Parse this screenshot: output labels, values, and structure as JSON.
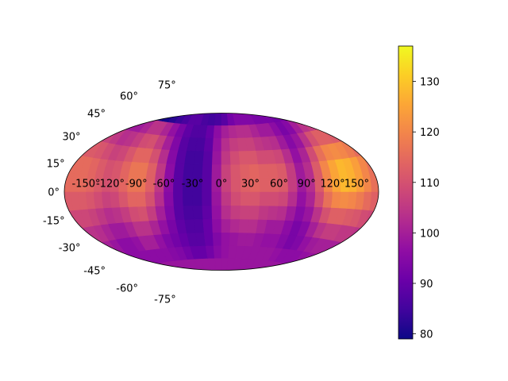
{
  "chart_data": {
    "type": "heatmap",
    "projection": "hammer",
    "grid": false,
    "lon_ticks": [
      {
        "value": -150,
        "label": "-150°"
      },
      {
        "value": -120,
        "label": "-120°"
      },
      {
        "value": -90,
        "label": "-90°"
      },
      {
        "value": -60,
        "label": "-60°"
      },
      {
        "value": -30,
        "label": "-30°"
      },
      {
        "value": 0,
        "label": "0°"
      },
      {
        "value": 30,
        "label": "30°"
      },
      {
        "value": 60,
        "label": "60°"
      },
      {
        "value": 90,
        "label": "90°"
      },
      {
        "value": 120,
        "label": "120°"
      },
      {
        "value": 150,
        "label": "150°"
      }
    ],
    "lat_ticks": [
      {
        "value": 75,
        "label": "75°"
      },
      {
        "value": 60,
        "label": "60°"
      },
      {
        "value": 45,
        "label": "45°"
      },
      {
        "value": 30,
        "label": "30°"
      },
      {
        "value": 15,
        "label": "15°"
      },
      {
        "value": 0,
        "label": "0°"
      },
      {
        "value": -15,
        "label": "-15°"
      },
      {
        "value": -30,
        "label": "-30°"
      },
      {
        "value": -45,
        "label": "-45°"
      },
      {
        "value": -60,
        "label": "-60°"
      },
      {
        "value": -75,
        "label": "-75°"
      }
    ],
    "lon_edges": [
      -180,
      -170,
      -160,
      -150,
      -140,
      -130,
      -120,
      -110,
      -100,
      -90,
      -80,
      -70,
      -60,
      -50,
      -40,
      -30,
      -20,
      -10,
      0,
      10,
      20,
      30,
      40,
      50,
      60,
      70,
      80,
      90,
      100,
      110,
      120,
      130,
      140,
      150,
      160,
      170,
      180
    ],
    "lat_edges": [
      -90,
      -80,
      -70,
      -60,
      -50,
      -40,
      -30,
      -20,
      -10,
      0,
      10,
      20,
      30,
      40,
      50,
      60,
      70,
      80,
      90
    ],
    "values_rows": [
      [
        100,
        100,
        100,
        100,
        100,
        100,
        100,
        100,
        100,
        100,
        100,
        100,
        100,
        100,
        100,
        100,
        100,
        100,
        100,
        100,
        100,
        100,
        100,
        100,
        100,
        100,
        100,
        100,
        100,
        100,
        100,
        100,
        100,
        100,
        100,
        100
      ],
      [
        101,
        101,
        101,
        101,
        101,
        101,
        101,
        101,
        101,
        101,
        101,
        101,
        101,
        101,
        101,
        101,
        101,
        101,
        101,
        101,
        101,
        101,
        101,
        101,
        101,
        101,
        101,
        101,
        101,
        101,
        101,
        101,
        101,
        101,
        101,
        101
      ],
      [
        102,
        102,
        102,
        102,
        102,
        102,
        102,
        102,
        102,
        102,
        102,
        102,
        102,
        102,
        102,
        102,
        102,
        102,
        102,
        102,
        102,
        102,
        102,
        102,
        102,
        102,
        102,
        102,
        102,
        102,
        102,
        102,
        102,
        102,
        102,
        102
      ],
      [
        98,
        98,
        98,
        98,
        98,
        98,
        98,
        98,
        98,
        98,
        98,
        98,
        98,
        98,
        98,
        98,
        98,
        98,
        98,
        98,
        98,
        98,
        98,
        98,
        98,
        98,
        98,
        98,
        98,
        98,
        98,
        98,
        98,
        98,
        98,
        98
      ],
      [
        99,
        99,
        99,
        98,
        97,
        96,
        96,
        96,
        96,
        96,
        96,
        95,
        94,
        92,
        90,
        90,
        92,
        95,
        97,
        98,
        98,
        98,
        98,
        98,
        98,
        97,
        96,
        96,
        96,
        97,
        98,
        98,
        98,
        98,
        99,
        99
      ],
      [
        101,
        101,
        101,
        100,
        98,
        96,
        96,
        97,
        100,
        100,
        97,
        94,
        92,
        90,
        88,
        88,
        90,
        94,
        97,
        98,
        99,
        99,
        98,
        97,
        97,
        95,
        93,
        94,
        97,
        99,
        100,
        100,
        100,
        100,
        101,
        101
      ],
      [
        104,
        104,
        104,
        103,
        101,
        99,
        99,
        101,
        104,
        104,
        101,
        97,
        93,
        89,
        87,
        87,
        90,
        96,
        100,
        102,
        103,
        103,
        101,
        99,
        99,
        96,
        93,
        95,
        100,
        104,
        106,
        106,
        105,
        105,
        104,
        104
      ],
      [
        108,
        108,
        108,
        107,
        105,
        103,
        104,
        106,
        109,
        110,
        106,
        100,
        94,
        88,
        86,
        86,
        89,
        97,
        103,
        106,
        107,
        107,
        105,
        104,
        103,
        99,
        95,
        98,
        104,
        110,
        113,
        113,
        112,
        111,
        109,
        108
      ],
      [
        112,
        112,
        112,
        111,
        109,
        107,
        108,
        111,
        114,
        114,
        110,
        103,
        95,
        88,
        85,
        85,
        88,
        98,
        105,
        109,
        111,
        111,
        109,
        109,
        108,
        103,
        97,
        101,
        109,
        116,
        120,
        121,
        120,
        118,
        115,
        113
      ],
      [
        115,
        115,
        115,
        114,
        112,
        110,
        111,
        114,
        117,
        117,
        113,
        105,
        96,
        88,
        85,
        85,
        88,
        99,
        107,
        111,
        113,
        114,
        113,
        113,
        112,
        106,
        99,
        103,
        112,
        120,
        125,
        128,
        127,
        124,
        120,
        116
      ],
      [
        115,
        115,
        115,
        114,
        112,
        110,
        111,
        114,
        117,
        117,
        113,
        105,
        96,
        88,
        85,
        85,
        88,
        99,
        107,
        111,
        113,
        114,
        113,
        113,
        112,
        106,
        99,
        103,
        112,
        120,
        125,
        128,
        127,
        124,
        120,
        116
      ],
      [
        112,
        112,
        112,
        111,
        109,
        107,
        108,
        111,
        114,
        114,
        110,
        103,
        95,
        88,
        85,
        85,
        88,
        98,
        105,
        109,
        111,
        111,
        109,
        109,
        108,
        103,
        97,
        101,
        109,
        116,
        120,
        121,
        120,
        118,
        115,
        113
      ],
      [
        108,
        108,
        108,
        107,
        105,
        103,
        104,
        106,
        109,
        110,
        106,
        100,
        94,
        88,
        86,
        86,
        89,
        97,
        103,
        106,
        107,
        107,
        105,
        104,
        103,
        99,
        95,
        98,
        104,
        110,
        113,
        113,
        112,
        111,
        109,
        108
      ],
      [
        104,
        104,
        104,
        103,
        101,
        99,
        99,
        101,
        104,
        104,
        101,
        97,
        93,
        89,
        87,
        87,
        90,
        96,
        100,
        102,
        103,
        103,
        101,
        99,
        99,
        96,
        93,
        95,
        100,
        104,
        106,
        106,
        105,
        105,
        104,
        104
      ],
      [
        101,
        99,
        97,
        95,
        93,
        90,
        86,
        82,
        80,
        80,
        82,
        84,
        86,
        88,
        88,
        86,
        85,
        86,
        88,
        92,
        94,
        94,
        94,
        93,
        93,
        93,
        92,
        93,
        94,
        95,
        96,
        97,
        98,
        99,
        100,
        101
      ],
      [
        96,
        96,
        96,
        95,
        94,
        92,
        90,
        89,
        88,
        87,
        88,
        89,
        90,
        91,
        91,
        89,
        88,
        89,
        91,
        93,
        94,
        94,
        94,
        94,
        94,
        94,
        93,
        93,
        94,
        94,
        95,
        95,
        96,
        96,
        96,
        96
      ],
      [
        95,
        95,
        95,
        95,
        95,
        95,
        95,
        95,
        95,
        95,
        95,
        95,
        95,
        95,
        95,
        95,
        95,
        95,
        95,
        95,
        95,
        95,
        95,
        95,
        95,
        95,
        95,
        95,
        95,
        95,
        95,
        95,
        95,
        95,
        95,
        95
      ],
      [
        96,
        96,
        96,
        96,
        96,
        96,
        96,
        96,
        96,
        96,
        96,
        96,
        96,
        96,
        96,
        96,
        96,
        96,
        96,
        96,
        96,
        96,
        96,
        96,
        96,
        96,
        96,
        96,
        96,
        96,
        96,
        96,
        96,
        96,
        96,
        96
      ]
    ],
    "colorbar": {
      "colormap": "plasma",
      "vmin": 79,
      "vmax": 137,
      "ticks": [
        {
          "value": 80,
          "label": "80"
        },
        {
          "value": 90,
          "label": "90"
        },
        {
          "value": 100,
          "label": "100"
        },
        {
          "value": 110,
          "label": "110"
        },
        {
          "value": 120,
          "label": "120"
        },
        {
          "value": 130,
          "label": "130"
        }
      ]
    }
  }
}
